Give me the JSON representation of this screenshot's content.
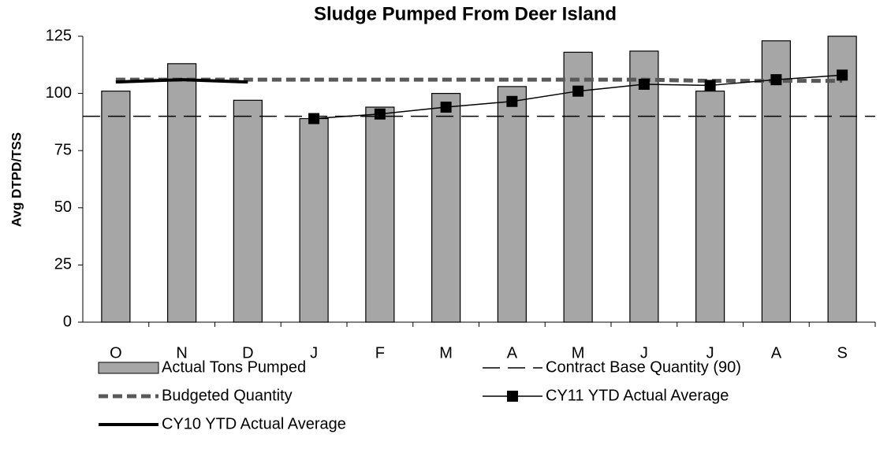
{
  "chart_data": {
    "type": "bar",
    "title": "Sludge Pumped From Deer Island",
    "y_label": "Avg  DTPD/TSS",
    "categories": [
      "O",
      "N",
      "D",
      "J",
      "F",
      "M",
      "A",
      "M",
      "J",
      "J",
      "A",
      "S"
    ],
    "ylim": [
      0,
      125
    ],
    "yticks": [
      0,
      25,
      50,
      75,
      100,
      125
    ],
    "series": [
      {
        "name": "Actual Tons Pumped",
        "type": "bar",
        "color": "#a6a6a6",
        "values": [
          101,
          113,
          97,
          89,
          94,
          100,
          103,
          118,
          118.5,
          101,
          123,
          125
        ]
      },
      {
        "name": "Contract Base Quantity (90)",
        "type": "line",
        "color": "#000000",
        "dash": "long",
        "width": 1.5,
        "values": [
          90,
          90,
          90,
          90,
          90,
          90,
          90,
          90,
          90,
          90,
          90,
          90
        ]
      },
      {
        "name": "Budgeted Quantity",
        "type": "line",
        "color": "#595959",
        "dash": "short",
        "width": 5,
        "values": [
          106,
          106,
          106,
          106,
          106,
          106,
          106,
          106,
          106,
          105.5,
          105.5,
          105.5
        ]
      },
      {
        "name": "CY11 YTD Actual Average",
        "type": "line",
        "color": "#000000",
        "marker": "square",
        "width": 1.5,
        "values": [
          null,
          null,
          null,
          89,
          91,
          94,
          96.5,
          101,
          104,
          103.5,
          106,
          108
        ]
      },
      {
        "name": "CY10 YTD Actual Average",
        "type": "line",
        "color": "#000000",
        "width": 4,
        "values": [
          105,
          106,
          105,
          null,
          null,
          null,
          null,
          null,
          null,
          null,
          null,
          null
        ]
      }
    ]
  }
}
